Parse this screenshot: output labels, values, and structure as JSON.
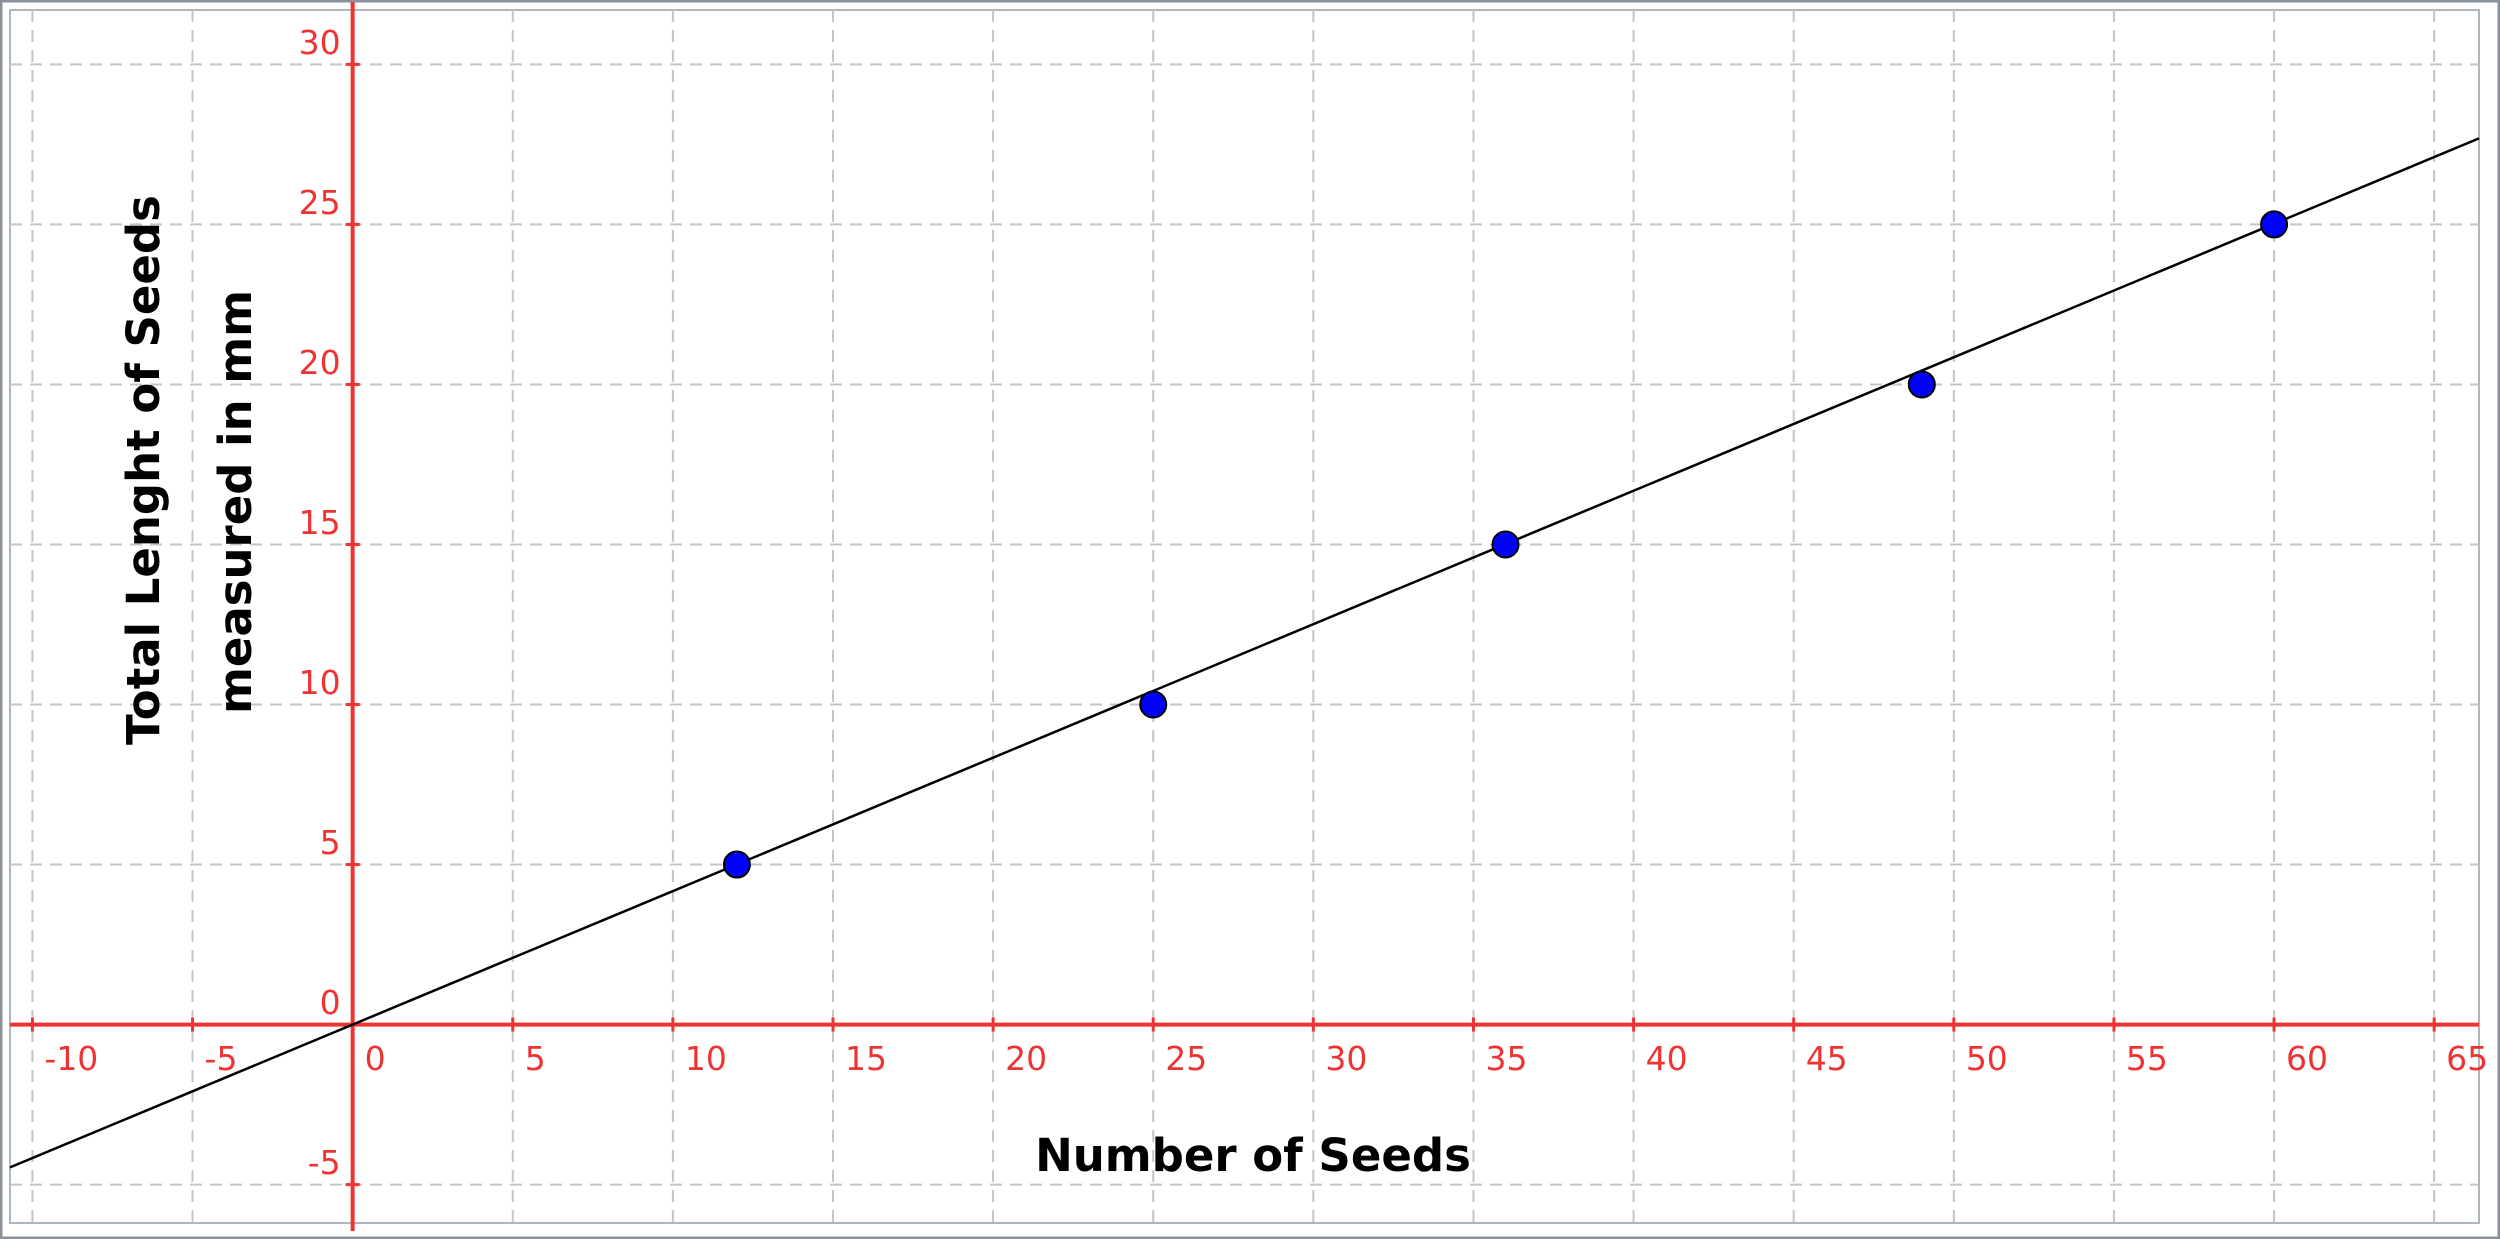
{
  "chart_data": {
    "type": "scatter",
    "xlabel": "Number of Seeds",
    "ylabel": [
      "Total Lenght of Seeds",
      "measured in mm"
    ],
    "x": [
      12,
      25,
      36,
      49,
      60
    ],
    "values": [
      5,
      10,
      15,
      20,
      25
    ],
    "color": "#0000ff",
    "trendline": {
      "slope": 0.417,
      "intercept": 0,
      "color": "#000000"
    },
    "axis_color": "#ee3333",
    "xlim": [
      -10.7,
      66.4
    ],
    "ylim": [
      -6.2,
      31.7
    ],
    "xticks": [
      -10,
      -5,
      0,
      5,
      10,
      15,
      20,
      25,
      30,
      35,
      40,
      45,
      50,
      55,
      60,
      65
    ],
    "yticks": [
      -5,
      0,
      5,
      10,
      15,
      20,
      25,
      30
    ],
    "grid": true
  }
}
